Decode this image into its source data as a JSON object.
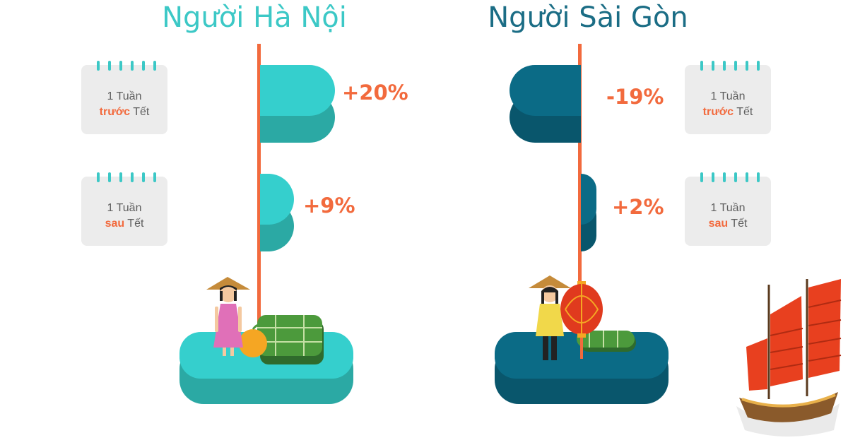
{
  "titles": {
    "hanoi": "Người Hà Nội",
    "saigon": "Người Sài Gòn"
  },
  "calendar": {
    "week": "1 Tuần",
    "before": "trước",
    "after": "sau",
    "tet": "Tết"
  },
  "colors": {
    "hanoi_bar": "#35cfcd",
    "hanoi_bar_shadow": "#2ba9a4",
    "saigon_bar": "#0b6b86",
    "saigon_bar_shadow": "#09566c",
    "pole": "#f26a3d",
    "label": "#f26a3d"
  },
  "chart_data": {
    "type": "bar",
    "categories": [
      "1 Tuần trước Tết",
      "1 Tuần sau Tết"
    ],
    "series": [
      {
        "name": "Người Hà Nội",
        "values": [
          20,
          9
        ],
        "labels": [
          "+20%",
          "+9%"
        ]
      },
      {
        "name": "Người Sài Gòn",
        "values": [
          -19,
          2
        ],
        "labels": [
          "-19%",
          "+2%"
        ]
      }
    ],
    "title": "",
    "xlabel": "",
    "ylabel": ""
  }
}
